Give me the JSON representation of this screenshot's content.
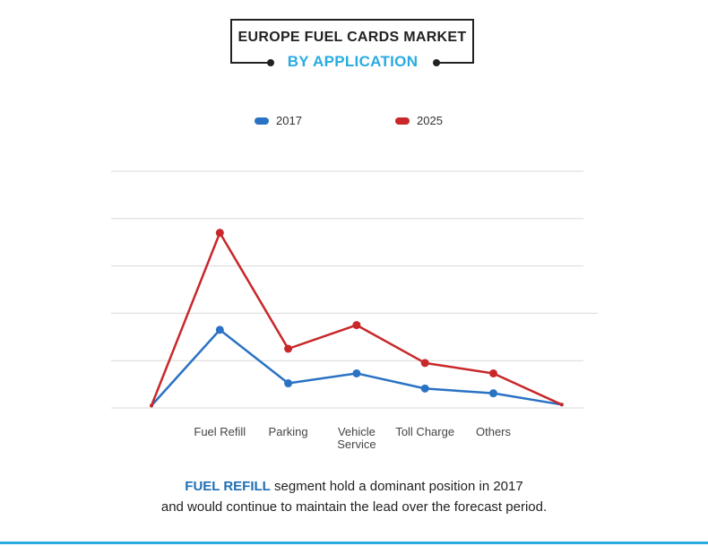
{
  "header": {
    "title": "EUROPE  FUEL CARDS MARKET",
    "subtitle": "BY APPLICATION"
  },
  "chart_data": {
    "type": "line",
    "title": "EUROPE FUEL CARDS MARKET",
    "subtitle": "BY APPLICATION",
    "categories": [
      "",
      "Fuel Refill",
      "Parking",
      "Vehicle Service",
      "Toll Charge",
      "Others",
      ""
    ],
    "category_labels": [
      [],
      [
        "Fuel Refill"
      ],
      [
        "Parking"
      ],
      [
        "Vehicle",
        "Service"
      ],
      [
        "Toll Charge"
      ],
      [
        "Others"
      ],
      []
    ],
    "ylim": [
      0,
      5
    ],
    "grid": true,
    "legend_position": "top-center",
    "series": [
      {
        "name": "2017",
        "color": "#2a72c3",
        "values": [
          0.05,
          1.65,
          0.52,
          0.73,
          0.41,
          0.31,
          0.07
        ]
      },
      {
        "name": "2025",
        "color": "#c8282a",
        "values": [
          0.05,
          3.7,
          1.25,
          1.75,
          0.95,
          0.73,
          0.07
        ]
      }
    ]
  },
  "caption": {
    "highlight": "FUEL REFILL",
    "line1_rest": " segment hold a dominant position in 2017",
    "line2": "and would continue to maintain the lead over the forecast period."
  },
  "colors": {
    "accent": "#29abe2",
    "series_2017": "#2a72c3",
    "series_2025": "#c8282a",
    "grid": "#d9d9d9"
  }
}
